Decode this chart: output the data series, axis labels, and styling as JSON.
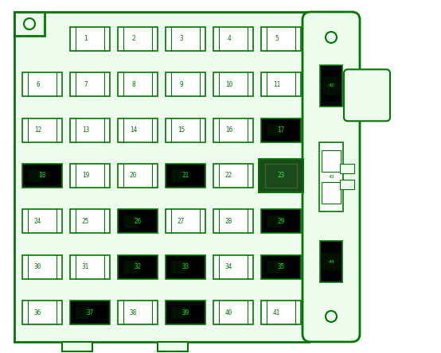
{
  "bg_color": "#ffffff",
  "panel_bg": "#edfced",
  "border_color": "#007700",
  "text_color": "#007700",
  "text_color_on_black": "#00ee00",
  "fuse_bg_normal": "#ffffff",
  "fuse_bg_black": "#000000",
  "fuse_bg_darkgreen": "#1a4a1a",
  "figsize": [
    5.54,
    4.44
  ],
  "dpi": 100,
  "fuses": [
    {
      "num": "1",
      "row": 0,
      "col": 1,
      "black": false,
      "large": false
    },
    {
      "num": "2",
      "row": 0,
      "col": 2,
      "black": false,
      "large": false
    },
    {
      "num": "3",
      "row": 0,
      "col": 3,
      "black": false,
      "large": false
    },
    {
      "num": "4",
      "row": 0,
      "col": 4,
      "black": false,
      "large": false
    },
    {
      "num": "5",
      "row": 0,
      "col": 5,
      "black": false,
      "large": false
    },
    {
      "num": "6",
      "row": 1,
      "col": 0,
      "black": false,
      "large": false
    },
    {
      "num": "7",
      "row": 1,
      "col": 1,
      "black": false,
      "large": false
    },
    {
      "num": "8",
      "row": 1,
      "col": 2,
      "black": false,
      "large": false
    },
    {
      "num": "9",
      "row": 1,
      "col": 3,
      "black": false,
      "large": false
    },
    {
      "num": "10",
      "row": 1,
      "col": 4,
      "black": false,
      "large": false
    },
    {
      "num": "11",
      "row": 1,
      "col": 5,
      "black": false,
      "large": false
    },
    {
      "num": "12",
      "row": 2,
      "col": 0,
      "black": false,
      "large": false
    },
    {
      "num": "13",
      "row": 2,
      "col": 1,
      "black": false,
      "large": false
    },
    {
      "num": "14",
      "row": 2,
      "col": 2,
      "black": false,
      "large": false
    },
    {
      "num": "15",
      "row": 2,
      "col": 3,
      "black": false,
      "large": false
    },
    {
      "num": "16",
      "row": 2,
      "col": 4,
      "black": false,
      "large": false
    },
    {
      "num": "17",
      "row": 2,
      "col": 5,
      "black": true,
      "large": false
    },
    {
      "num": "18",
      "row": 3,
      "col": 0,
      "black": true,
      "large": false
    },
    {
      "num": "19",
      "row": 3,
      "col": 1,
      "black": false,
      "large": false
    },
    {
      "num": "20",
      "row": 3,
      "col": 2,
      "black": false,
      "large": false
    },
    {
      "num": "21",
      "row": 3,
      "col": 3,
      "black": true,
      "large": false
    },
    {
      "num": "22",
      "row": 3,
      "col": 4,
      "black": false,
      "large": false
    },
    {
      "num": "23",
      "row": 3,
      "col": 5,
      "black": false,
      "large": true,
      "darkgreen": true
    },
    {
      "num": "24",
      "row": 4,
      "col": 0,
      "black": false,
      "large": false
    },
    {
      "num": "25",
      "row": 4,
      "col": 1,
      "black": false,
      "large": false
    },
    {
      "num": "26",
      "row": 4,
      "col": 2,
      "black": true,
      "large": false
    },
    {
      "num": "27",
      "row": 4,
      "col": 3,
      "black": false,
      "large": false
    },
    {
      "num": "28",
      "row": 4,
      "col": 4,
      "black": false,
      "large": false
    },
    {
      "num": "29",
      "row": 4,
      "col": 5,
      "black": true,
      "large": false
    },
    {
      "num": "30",
      "row": 5,
      "col": 0,
      "black": false,
      "large": false
    },
    {
      "num": "31",
      "row": 5,
      "col": 1,
      "black": false,
      "large": false
    },
    {
      "num": "32",
      "row": 5,
      "col": 2,
      "black": true,
      "large": false
    },
    {
      "num": "33",
      "row": 5,
      "col": 3,
      "black": true,
      "large": false
    },
    {
      "num": "34",
      "row": 5,
      "col": 4,
      "black": false,
      "large": false
    },
    {
      "num": "35",
      "row": 5,
      "col": 5,
      "black": true,
      "large": false
    },
    {
      "num": "36",
      "row": 6,
      "col": 0,
      "black": false,
      "large": false
    },
    {
      "num": "37",
      "row": 6,
      "col": 1,
      "black": true,
      "large": false
    },
    {
      "num": "38",
      "row": 6,
      "col": 2,
      "black": false,
      "large": false
    },
    {
      "num": "39",
      "row": 6,
      "col": 3,
      "black": true,
      "large": false
    },
    {
      "num": "40",
      "row": 6,
      "col": 4,
      "black": false,
      "large": false
    },
    {
      "num": "41",
      "row": 6,
      "col": 5,
      "black": false,
      "large": false
    }
  ]
}
